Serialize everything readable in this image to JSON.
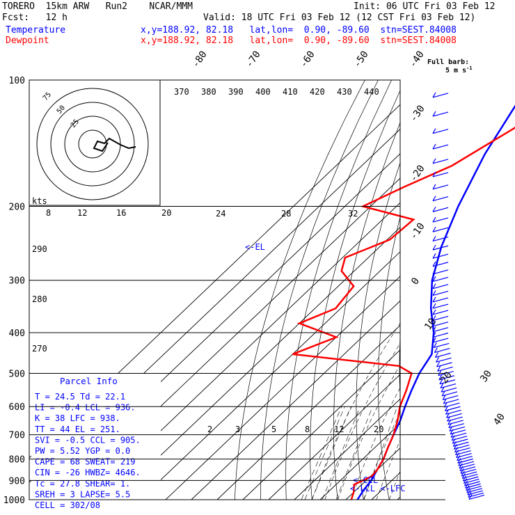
{
  "header": {
    "model": "TORERO  15km ARW   Run2    NCAR/MMM",
    "init": "Init: 06 UTC Fri 03 Feb 12",
    "fcst": "Fcst:   12 h",
    "valid": "Valid: 18 UTC Fri 03 Feb 12 (12 CST Fri 03 Feb 12)",
    "temp_label": "Temperature",
    "temp_loc": "x,y=188.92, 82.18   lat,lon=  0.90, -89.60  stn=SEST.84008",
    "dew_label": "Dewpoint",
    "dew_loc": "x,y=188.92, 82.18   lat,lon=  0.90, -89.60  stn=SEST.84008",
    "full_barb": "Full barb:",
    "full_barb_unit": "5 m s",
    "full_barb_sup": "-1"
  },
  "chart_data": {
    "type": "line",
    "subtype": "skew-T log-p sounding",
    "pressure_levels": [
      100,
      200,
      300,
      400,
      500,
      600,
      700,
      800,
      900,
      1000
    ],
    "pressure_labels": [
      "100",
      "200",
      "300",
      "400",
      "500",
      "600",
      "700",
      "800",
      "900",
      "1000"
    ],
    "skewed_temp_labels": [
      "-80",
      "-70",
      "-60",
      "-50",
      "-40",
      "-30",
      "-20",
      "-10",
      "0",
      "10",
      "20",
      "30",
      "40"
    ],
    "theta_e_labels": [
      "370",
      "380",
      "390",
      "400",
      "410",
      "420",
      "430",
      "440"
    ],
    "mixing_ratio_labels": [
      "2",
      "3",
      "5",
      "8",
      "12",
      "20"
    ],
    "theta_labels_left": [
      "290",
      "280",
      "270"
    ],
    "theta_e_labels_mid": [
      "24",
      "28",
      "32"
    ],
    "kts_label": "kts",
    "kts_scale": [
      "8",
      "12",
      "16",
      "20"
    ],
    "hodo_ring_labels": [
      "75",
      "50",
      "25"
    ],
    "series": [
      {
        "name": "Temperature",
        "color": "#0000ff",
        "points": [
          [
            100,
            -79
          ],
          [
            150,
            -67
          ],
          [
            200,
            -56
          ],
          [
            250,
            -46
          ],
          [
            300,
            -36
          ],
          [
            350,
            -25
          ],
          [
            400,
            -14
          ],
          [
            450,
            -6
          ],
          [
            500,
            -3
          ],
          [
            550,
            1
          ],
          [
            600,
            5
          ],
          [
            650,
            9
          ],
          [
            700,
            12
          ],
          [
            750,
            15
          ],
          [
            800,
            18
          ],
          [
            850,
            20
          ],
          [
            900,
            22
          ],
          [
            950,
            23
          ],
          [
            1000,
            24.5
          ]
        ]
      },
      {
        "name": "Dewpoint",
        "color": "#ff0000",
        "points": [
          [
            100,
            -60
          ],
          [
            130,
            -66
          ],
          [
            160,
            -75
          ],
          [
            180,
            -85
          ],
          [
            200,
            -93
          ],
          [
            215,
            -68
          ],
          [
            240,
            -69
          ],
          [
            265,
            -79
          ],
          [
            285,
            -75
          ],
          [
            310,
            -64
          ],
          [
            350,
            -62
          ],
          [
            380,
            -70
          ],
          [
            410,
            -50
          ],
          [
            450,
            -60
          ],
          [
            480,
            -14
          ],
          [
            500,
            -6
          ],
          [
            550,
            -1
          ],
          [
            600,
            3
          ],
          [
            650,
            8
          ],
          [
            700,
            12
          ],
          [
            750,
            15
          ],
          [
            800,
            18
          ],
          [
            850,
            20
          ],
          [
            880,
            20.5
          ],
          [
            920,
            17
          ],
          [
            960,
            20
          ],
          [
            1000,
            22.1
          ]
        ]
      }
    ],
    "annotations": [
      "<-EL",
      "<-CCL",
      "<-LCL <-LFC"
    ],
    "parcel_info": {
      "title": "Parcel Info",
      "rows": [
        "T   =    24.5  Td  =  22.1",
        "LI  =    -0.4  LCL =  936.",
        "K   =     38   LFC =  938.",
        "TT  =     44   EL  =  251.",
        "SVI =    -0.5  CCL =  905.",
        "PW  =    5.52  YGP =   0.0",
        "CAPE =    68   SWEAT=  219",
        "CIN  =   -26   HWBZ= 4646.",
        "Tc  =    27.8  SHEAR=   1.",
        "SREH =     3   LAPSE=  5.5",
        "CELL = 302/08"
      ]
    },
    "hodograph": [
      [
        0,
        0
      ],
      [
        -10,
        2
      ],
      [
        -22,
        -3
      ],
      [
        -38,
        -12
      ],
      [
        -45,
        -5
      ],
      [
        -55,
        -8
      ],
      [
        -60,
        2
      ],
      [
        -48,
        6
      ],
      [
        -40,
        -6
      ]
    ]
  }
}
